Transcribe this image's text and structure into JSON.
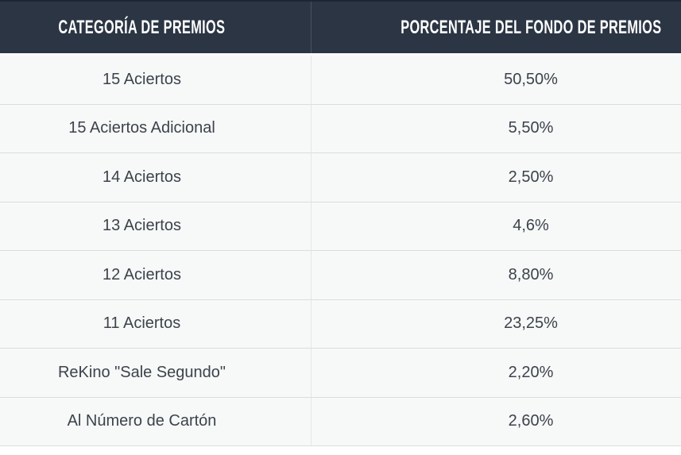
{
  "table": {
    "columns": [
      {
        "label": "CATEGORÍA DE PREMIOS"
      },
      {
        "label": "PORCENTAJE DEL FONDO DE PREMIOS"
      }
    ],
    "rows": [
      {
        "category": "15 Aciertos",
        "percentage": "50,50%"
      },
      {
        "category": "15 Aciertos Adicional",
        "percentage": "5,50%"
      },
      {
        "category": "14 Aciertos",
        "percentage": "2,50%"
      },
      {
        "category": "13 Aciertos",
        "percentage": "4,6%"
      },
      {
        "category": "12 Aciertos",
        "percentage": "8,80%"
      },
      {
        "category": "11 Aciertos",
        "percentage": "23,25%"
      },
      {
        "category": "ReKino \"Sale Segundo\"",
        "percentage": "2,20%"
      },
      {
        "category": "Al Número de Cartón",
        "percentage": "2,60%"
      }
    ]
  },
  "colors": {
    "header_background": "#2b3544",
    "header_text": "#ffffff",
    "table_top_border": "#1d2733",
    "row_background": "#f7f8f8",
    "row_separator": "#dbdcdd",
    "body_text": "#3c434b"
  }
}
